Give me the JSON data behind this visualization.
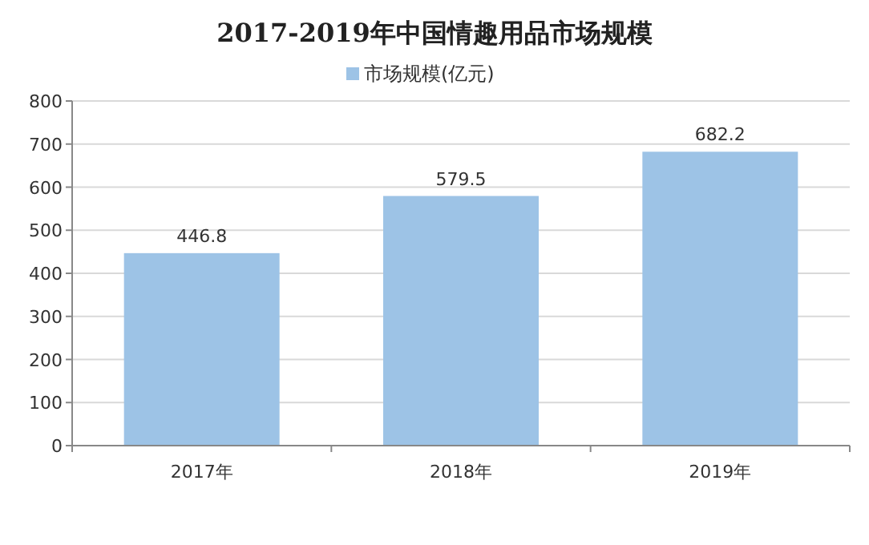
{
  "chart_data": {
    "type": "bar",
    "title": "2017-2019年中国情趣用品市场规模",
    "categories": [
      "2017年",
      "2018年",
      "2019年"
    ],
    "series": [
      {
        "name": "市场规模(亿元)",
        "color": "#9dc3e6",
        "values": [
          446.8,
          579.5,
          682.2
        ]
      }
    ],
    "ylim": [
      0,
      800
    ],
    "yticks": [
      0,
      100,
      200,
      300,
      400,
      500,
      600,
      700,
      800
    ],
    "grid": "y",
    "legend": "top",
    "data_labels": true
  }
}
